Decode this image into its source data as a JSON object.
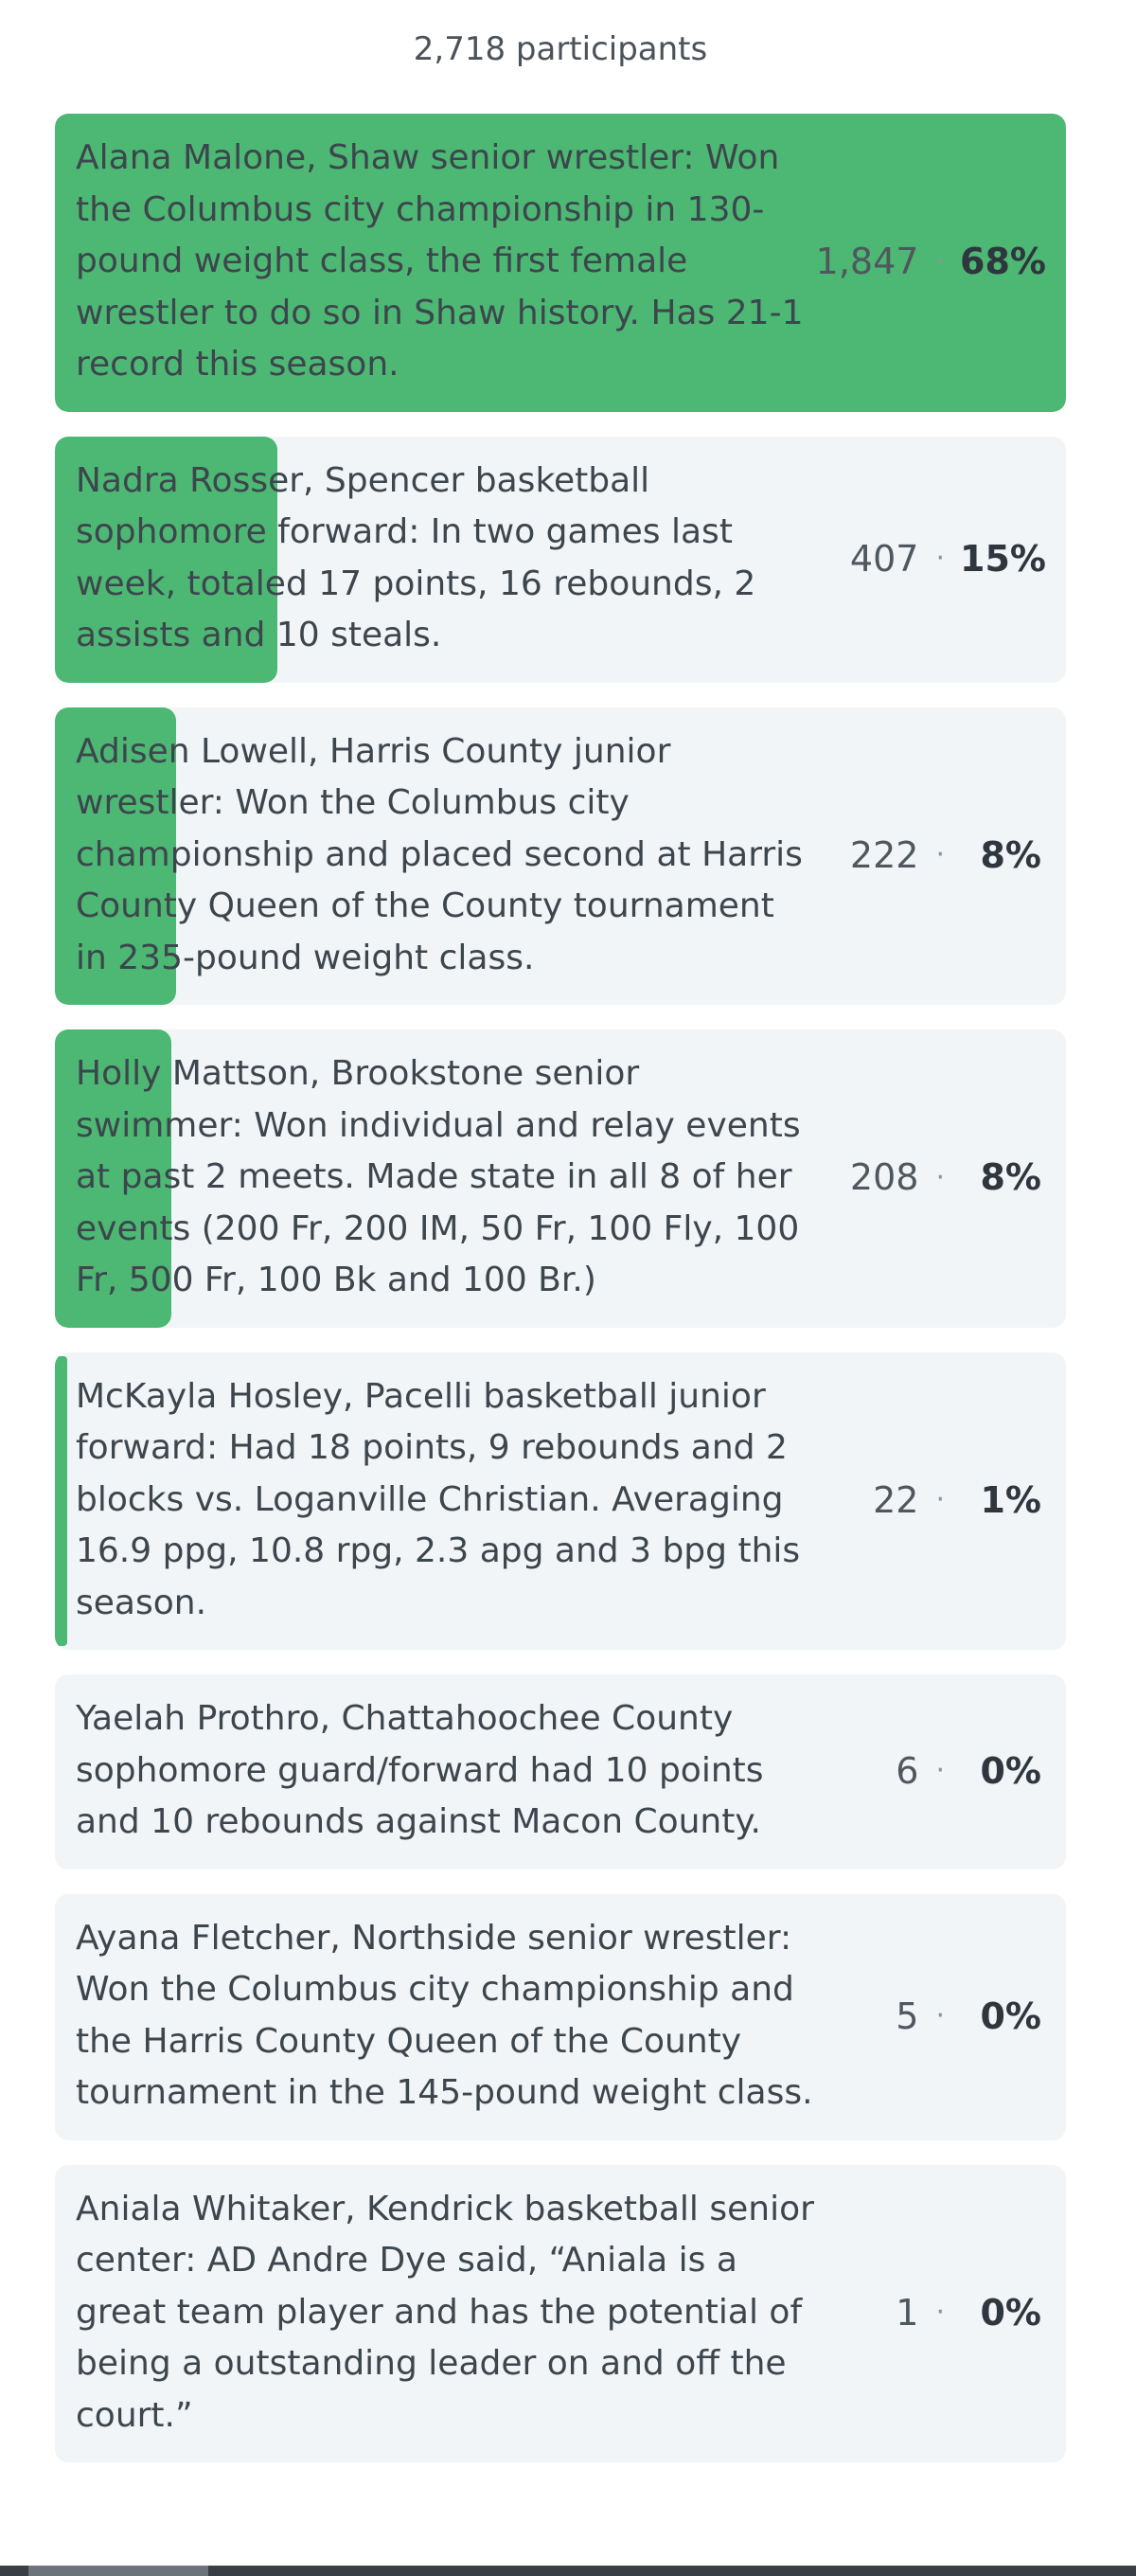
{
  "poll": {
    "participants_label": "2,718 participants",
    "options": [
      {
        "text": "Alana Malone, Shaw senior wrestler: Won the Columbus city championship in 130-pound weight class, the first female wrestler to do so in Shaw history. Has 21-1 record this season.",
        "count": "1,847",
        "percent": "68%",
        "fraction": 1.0
      },
      {
        "text": "Nadra Rosser, Spencer basketball sophomore forward: In two games last week, totaled 17 points, 16 rebounds, 2 assists and 10 steals.",
        "count": "407",
        "percent": "15%",
        "fraction": 0.22
      },
      {
        "text": "Adisen Lowell, Harris County junior wrestler: Won the Columbus city championship and placed second at Harris County Queen of the County tournament in 235-pound weight class.",
        "count": "222",
        "percent": "8%",
        "fraction": 0.12
      },
      {
        "text": "Holly Mattson, Brookstone senior swimmer: Won individual and relay events at past 2 meets. Made state in all 8 of her events (200 Fr, 200 IM, 50 Fr, 100 Fly, 100 Fr, 500 Fr, 100 Bk and 100 Br.)",
        "count": "208",
        "percent": "8%",
        "fraction": 0.115
      },
      {
        "text": "McKayla Hosley, Pacelli basketball junior forward: Had 18 points, 9 rebounds and 2 blocks vs. Loganville Christian. Averaging 16.9 ppg, 10.8 rpg, 2.3 apg and 3 bpg this season.",
        "count": "22",
        "percent": "1%",
        "fraction": 0.012
      },
      {
        "text": "Yaelah Prothro, Chattahoochee County sophomore guard/forward had 10 points and 10 rebounds against Macon County.",
        "count": "6",
        "percent": "0%",
        "fraction": 0
      },
      {
        "text": "Ayana Fletcher, Northside senior wrestler: Won the Columbus city championship and the Harris County Queen of the County tournament in the 145-pound weight class.",
        "count": "5",
        "percent": "0%",
        "fraction": 0
      },
      {
        "text": "Aniala Whitaker, Kendrick basketball senior center: AD Andre Dye said, “Aniala is a great team player and has the potential of being a outstanding leader on and off the court.”",
        "count": "1",
        "percent": "0%",
        "fraction": 0
      }
    ],
    "separator": "·"
  },
  "colors": {
    "bar_fill": "#4cb873",
    "option_bg": "#f1f5f7"
  }
}
